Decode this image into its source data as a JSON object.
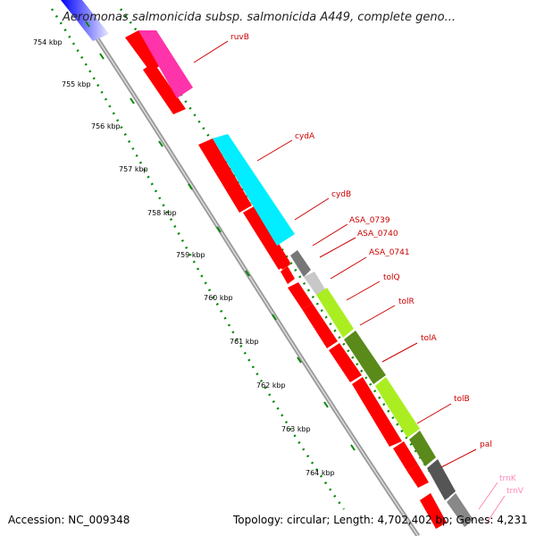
{
  "title": "Aeromonas salmonicida subsp. salmonicida A449, complete geno...",
  "footer": {
    "accession": "Accession: NC_009348",
    "summary": "Topology: circular; Length: 4,702,402 bp; Genes: 4,231"
  },
  "colors": {
    "cds": "#ff0000",
    "label": "#cc0000",
    "ticks": "#008800",
    "backbone": "#9a9a9a",
    "trna_label": "#ff88bb"
  },
  "tick_labels": [
    "754 kbp",
    "755 kbp",
    "756 kbp",
    "757 kbp",
    "758 kbp",
    "759 kbp",
    "760 kbp",
    "761 kbp",
    "762 kbp",
    "763 kbp",
    "764 kbp"
  ],
  "gene_labels": [
    "ruvB",
    "cydA",
    "cydB",
    "ASA_0739",
    "ASA_0740",
    "ASA_0741",
    "tolQ",
    "tolR",
    "tolA",
    "tolB",
    "pal"
  ],
  "trna_labels": [
    "trnK",
    "trnV"
  ]
}
